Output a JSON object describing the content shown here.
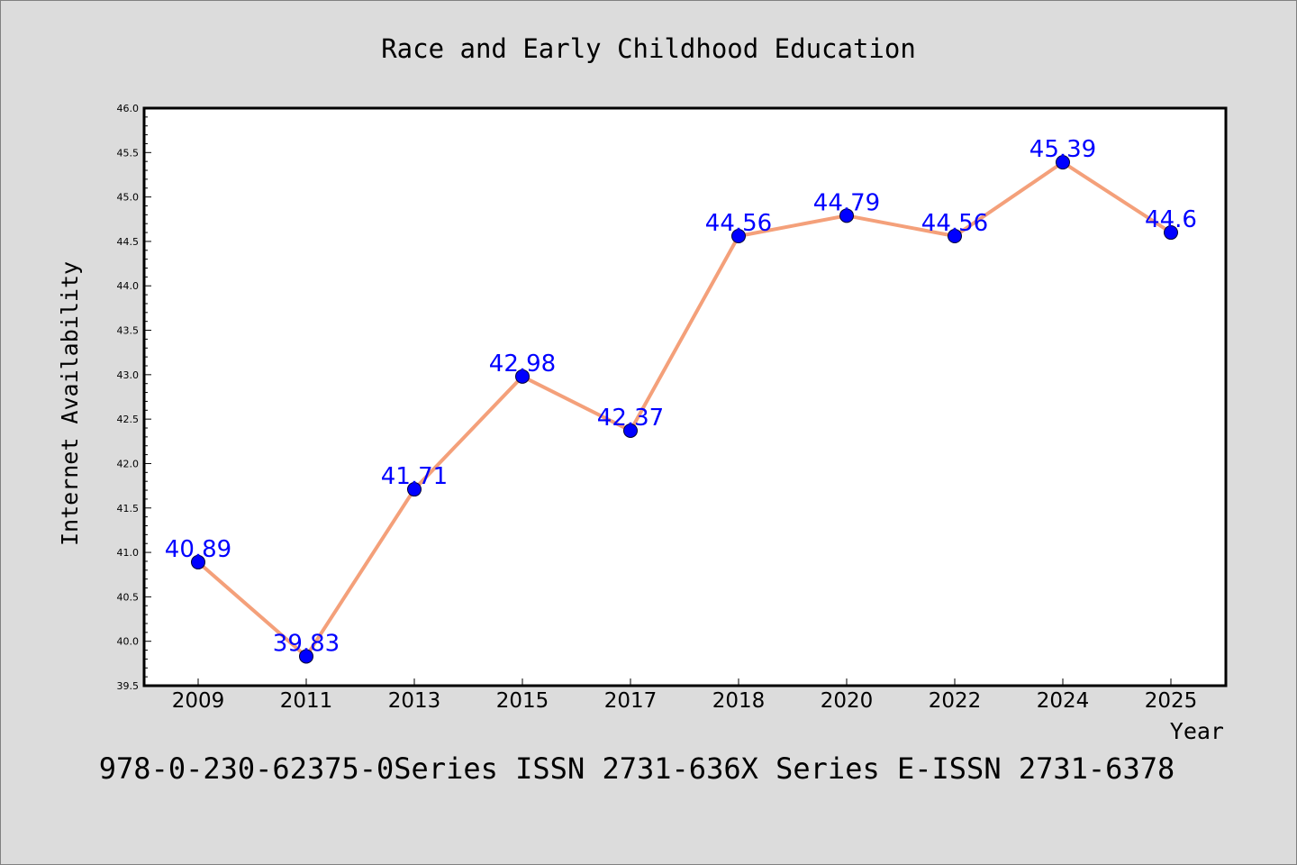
{
  "chart_data": {
    "type": "line",
    "title": "Race and Early Childhood Education",
    "xlabel": "Year",
    "ylabel": "Internet Availability",
    "categories": [
      "2009",
      "2011",
      "2013",
      "2015",
      "2017",
      "2018",
      "2020",
      "2022",
      "2024",
      "2025"
    ],
    "values": [
      40.89,
      39.83,
      41.71,
      42.98,
      42.37,
      44.56,
      44.79,
      44.56,
      45.39,
      44.6
    ],
    "data_labels": [
      "40.89",
      "39.83",
      "41.71",
      "42.98",
      "42.37",
      "44.56",
      "44.79",
      "44.56",
      "45.39",
      "44.6"
    ],
    "ylim": [
      39.5,
      46.0
    ],
    "yticks": [
      "39.5",
      "40.0",
      "40.5",
      "41.0",
      "41.5",
      "42.0",
      "42.5",
      "43.0",
      "43.5",
      "44.0",
      "44.5",
      "45.0",
      "45.5",
      "46.0"
    ],
    "grid": false,
    "legend": "none",
    "colors": {
      "line": "#f4a07a",
      "marker": "#0000ff",
      "marker_edge": "#000033",
      "label": "#0000ff",
      "background": "#dcdcdc",
      "plot_background": "#ffffff"
    }
  },
  "footer": "978-0-230-62375-0Series ISSN 2731-636X Series E-ISSN 2731-6378"
}
